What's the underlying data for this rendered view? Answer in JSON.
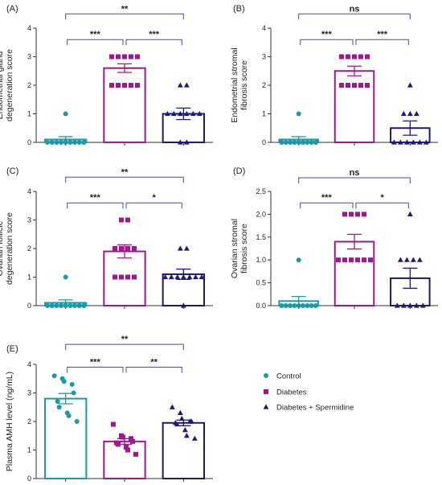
{
  "colors": {
    "control": "#1a9aa8",
    "diabetes": "#a0178f",
    "spermidine": "#1c1a78"
  },
  "legend": {
    "items": [
      "Control",
      "Diabetes",
      "Diabetes + Spermidine"
    ]
  },
  "chart_data": [
    {
      "panel": "(A)",
      "type": "bar",
      "ylabel": [
        "Endometrial gland",
        "degeneration score"
      ],
      "ylim": [
        0,
        4
      ],
      "yticks": [
        "0",
        "1",
        "2",
        "3",
        "4"
      ],
      "categories": [
        "Control",
        "Diabetes",
        "Diabetes + Spermidine"
      ],
      "values": [
        0.1,
        2.6,
        1.0
      ],
      "errors": [
        0.1,
        0.15,
        0.2
      ],
      "points": [
        [
          1,
          0,
          0,
          0,
          0,
          0,
          0,
          0,
          0,
          0
        ],
        [
          3,
          3,
          3,
          3,
          3,
          2,
          2,
          2,
          2,
          2
        ],
        [
          2,
          2,
          1,
          1,
          1,
          1,
          1,
          1,
          0,
          0
        ]
      ],
      "brackets": [
        {
          "from": 0,
          "to": 1,
          "label": "***",
          "y": 3.6
        },
        {
          "from": 1,
          "to": 2,
          "label": "***",
          "y": 3.6
        },
        {
          "from": 0,
          "to": 2,
          "label": "**",
          "y": 4.5
        }
      ]
    },
    {
      "panel": "(B)",
      "type": "bar",
      "ylabel": [
        "Endometrial stromal",
        "fibrosis score"
      ],
      "ylim": [
        0,
        4
      ],
      "yticks": [
        "0",
        "1",
        "2",
        "3",
        "4"
      ],
      "categories": [
        "Control",
        "Diabetes",
        "Diabetes + Spermidine"
      ],
      "values": [
        0.1,
        2.5,
        0.5
      ],
      "errors": [
        0.1,
        0.17,
        0.25
      ],
      "points": [
        [
          1,
          0,
          0,
          0,
          0,
          0,
          0,
          0,
          0,
          0
        ],
        [
          3,
          3,
          3,
          3,
          3,
          2,
          2,
          2,
          2,
          2
        ],
        [
          2,
          1,
          1,
          1,
          0,
          0,
          0,
          0,
          0,
          0
        ]
      ],
      "brackets": [
        {
          "from": 0,
          "to": 1,
          "label": "***",
          "y": 3.6
        },
        {
          "from": 1,
          "to": 2,
          "label": "***",
          "y": 3.6
        },
        {
          "from": 0,
          "to": 2,
          "label": "ns",
          "y": 4.5
        }
      ]
    },
    {
      "panel": "(C)",
      "type": "bar",
      "ylabel": [
        "Ovarian follicle",
        "degeneration score"
      ],
      "ylim": [
        0,
        4
      ],
      "yticks": [
        "0",
        "1",
        "2",
        "3",
        "4"
      ],
      "categories": [
        "Control",
        "Diabetes",
        "Diabetes + Spermidine"
      ],
      "values": [
        0.1,
        1.9,
        1.1
      ],
      "errors": [
        0.1,
        0.23,
        0.18
      ],
      "points": [
        [
          1,
          0,
          0,
          0,
          0,
          0,
          0,
          0,
          0,
          0
        ],
        [
          3,
          3,
          2,
          2,
          2,
          2,
          1,
          1,
          1,
          1
        ],
        [
          2,
          2,
          1,
          1,
          1,
          1,
          1,
          1,
          1,
          0
        ]
      ],
      "brackets": [
        {
          "from": 0,
          "to": 1,
          "label": "***",
          "y": 3.6
        },
        {
          "from": 1,
          "to": 2,
          "label": "*",
          "y": 3.6
        },
        {
          "from": 0,
          "to": 2,
          "label": "**",
          "y": 4.5
        }
      ]
    },
    {
      "panel": "(D)",
      "type": "bar",
      "ylabel": [
        "Ovarian stromal",
        "fibrosis score"
      ],
      "ylim": [
        0,
        2.5
      ],
      "yticks": [
        "0.0",
        "0.5",
        "1.0",
        "1.5",
        "2.0",
        "2.5"
      ],
      "categories": [
        "Control",
        "Diabetes",
        "Diabetes + Spermidine"
      ],
      "values": [
        0.1,
        1.4,
        0.6
      ],
      "errors": [
        0.1,
        0.16,
        0.22
      ],
      "points": [
        [
          1,
          0,
          0,
          0,
          0,
          0,
          0,
          0,
          0,
          0
        ],
        [
          2,
          2,
          2,
          2,
          1,
          1,
          1,
          1,
          1,
          1
        ],
        [
          2,
          1,
          1,
          1,
          1,
          0,
          0,
          0,
          0,
          0
        ]
      ],
      "brackets": [
        {
          "from": 0,
          "to": 1,
          "label": "***",
          "y": 2.25
        },
        {
          "from": 1,
          "to": 2,
          "label": "*",
          "y": 2.25
        },
        {
          "from": 0,
          "to": 2,
          "label": "ns",
          "y": 2.8
        }
      ]
    },
    {
      "panel": "(E)",
      "type": "bar",
      "ylabel": [
        "Plasma AMH level (ng/mL)"
      ],
      "ylim": [
        0,
        4
      ],
      "yticks": [
        "0",
        "1",
        "2",
        "3",
        "4"
      ],
      "categories": [
        "Control",
        "Diabetes",
        "Diabetes + Spermidine"
      ],
      "values": [
        2.8,
        1.3,
        1.95
      ],
      "errors": [
        0.18,
        0.1,
        0.1
      ],
      "points": [
        [
          3.6,
          3.5,
          3.4,
          3.3,
          3.0,
          2.7,
          2.5,
          2.3,
          2.2,
          2.0
        ],
        [
          1.9,
          1.5,
          1.45,
          1.4,
          1.3,
          1.25,
          1.2,
          1.1,
          1.0,
          0.85
        ],
        [
          2.5,
          2.3,
          2.1,
          2.0,
          2.0,
          1.95,
          1.9,
          1.7,
          1.5,
          1.4
        ]
      ],
      "brackets": [
        {
          "from": 0,
          "to": 1,
          "label": "***",
          "y": 3.9
        },
        {
          "from": 1,
          "to": 2,
          "label": "**",
          "y": 3.9
        },
        {
          "from": 0,
          "to": 2,
          "label": "**",
          "y": 4.7
        }
      ]
    }
  ]
}
